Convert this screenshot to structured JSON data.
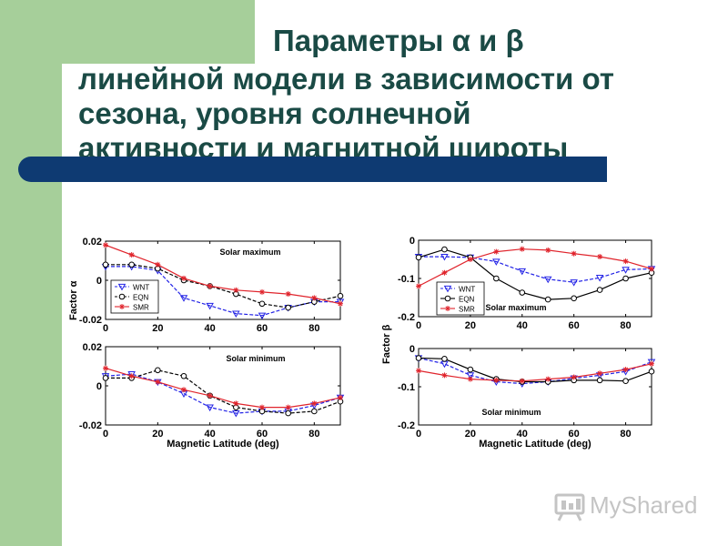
{
  "slide": {
    "title_line1": "Параметры α и β",
    "title_lines": [
      "линейной модели в зависимости от",
      "сезона, уровня солнечной",
      "активности и магнитной широты"
    ],
    "colors": {
      "green": "#a6cf9a",
      "bar": "#0e3a72",
      "title": "#1a4a45"
    }
  },
  "watermark": {
    "text": "MyShared",
    "icon": "presentation-board-icon"
  },
  "chart_data": [
    {
      "type": "line",
      "annotation": "Solar maximum",
      "ylabel": "Factor α",
      "xlabel": "",
      "xlim": [
        0,
        90
      ],
      "ylim": [
        -0.02,
        0.02
      ],
      "xticks": [
        "0",
        "20",
        "40",
        "60",
        "80"
      ],
      "yticks": [
        "0.02",
        "0",
        "-0.02"
      ],
      "legend": "bottom-left",
      "x": [
        0,
        10,
        20,
        30,
        40,
        50,
        60,
        70,
        80,
        90
      ],
      "series": [
        {
          "name": "WNT",
          "color": "#2323e6",
          "dash": true,
          "marker": "triangle-down",
          "values": [
            0.007,
            0.007,
            0.005,
            -0.009,
            -0.013,
            -0.017,
            -0.018,
            -0.014,
            -0.011,
            -0.011
          ]
        },
        {
          "name": "EQN",
          "color": "#000000",
          "dash": true,
          "marker": "circle",
          "values": [
            0.008,
            0.008,
            0.006,
            0.0,
            -0.003,
            -0.007,
            -0.012,
            -0.014,
            -0.011,
            -0.008
          ]
        },
        {
          "name": "SMR",
          "color": "#e0242c",
          "dash": false,
          "marker": "star",
          "values": [
            0.018,
            0.013,
            0.008,
            0.001,
            -0.003,
            -0.005,
            -0.006,
            -0.007,
            -0.009,
            -0.012
          ]
        }
      ]
    },
    {
      "type": "line",
      "annotation": "Solar minimum",
      "ylabel": "",
      "xlabel": "Magnetic Latitude (deg)",
      "xlim": [
        0,
        90
      ],
      "ylim": [
        -0.02,
        0.02
      ],
      "xticks": [
        "0",
        "20",
        "40",
        "60",
        "80"
      ],
      "yticks": [
        "0.02",
        "0",
        "-0.02"
      ],
      "legend": "none",
      "x": [
        0,
        10,
        20,
        30,
        40,
        50,
        60,
        70,
        80,
        90
      ],
      "series": [
        {
          "name": "WNT",
          "color": "#2323e6",
          "dash": true,
          "marker": "triangle-down",
          "values": [
            0.005,
            0.006,
            0.002,
            -0.004,
            -0.011,
            -0.014,
            -0.013,
            -0.013,
            -0.01,
            -0.006
          ]
        },
        {
          "name": "EQN",
          "color": "#000000",
          "dash": true,
          "marker": "circle",
          "values": [
            0.004,
            0.004,
            0.008,
            0.005,
            -0.005,
            -0.011,
            -0.013,
            -0.014,
            -0.013,
            -0.008
          ]
        },
        {
          "name": "SMR",
          "color": "#e0242c",
          "dash": false,
          "marker": "star",
          "values": [
            0.009,
            0.005,
            0.002,
            -0.002,
            -0.005,
            -0.009,
            -0.011,
            -0.011,
            -0.009,
            -0.006
          ]
        }
      ]
    },
    {
      "type": "line",
      "annotation": "Solar maximum",
      "ylabel": "",
      "xlabel": "",
      "xlim": [
        0,
        90
      ],
      "ylim": [
        -0.2,
        0.0
      ],
      "xticks": [
        "0",
        "20",
        "40",
        "60",
        "80"
      ],
      "yticks": [
        "0",
        "-0.1",
        "-0.2"
      ],
      "legend": "bottom-left",
      "x": [
        0,
        10,
        20,
        30,
        40,
        50,
        60,
        70,
        80,
        90
      ],
      "series": [
        {
          "name": "WNT",
          "color": "#2323e6",
          "dash": true,
          "marker": "triangle-down",
          "values": [
            -0.043,
            -0.043,
            -0.045,
            -0.056,
            -0.081,
            -0.102,
            -0.11,
            -0.098,
            -0.077,
            -0.075
          ]
        },
        {
          "name": "EQN",
          "color": "#000000",
          "dash": false,
          "marker": "circle",
          "values": [
            -0.045,
            -0.024,
            -0.045,
            -0.1,
            -0.137,
            -0.155,
            -0.152,
            -0.13,
            -0.1,
            -0.085
          ]
        },
        {
          "name": "SMR",
          "color": "#e0242c",
          "dash": false,
          "marker": "star",
          "values": [
            -0.12,
            -0.085,
            -0.05,
            -0.03,
            -0.023,
            -0.026,
            -0.035,
            -0.043,
            -0.055,
            -0.075
          ]
        }
      ]
    },
    {
      "type": "line",
      "annotation": "Solar minimum",
      "ylabel": "Factor β",
      "xlabel": "Magnetic Latitude (deg)",
      "xlim": [
        0,
        90
      ],
      "ylim": [
        -0.2,
        0.0
      ],
      "xticks": [
        "0",
        "20",
        "40",
        "60",
        "80"
      ],
      "yticks": [
        "0",
        "-0.1",
        "-0.2"
      ],
      "legend": "none",
      "x": [
        0,
        10,
        20,
        30,
        40,
        50,
        60,
        70,
        80,
        90
      ],
      "series": [
        {
          "name": "WNT",
          "color": "#2323e6",
          "dash": true,
          "marker": "triangle-down",
          "values": [
            -0.025,
            -0.04,
            -0.07,
            -0.087,
            -0.092,
            -0.087,
            -0.078,
            -0.07,
            -0.06,
            -0.035
          ]
        },
        {
          "name": "EQN",
          "color": "#000000",
          "dash": false,
          "marker": "circle",
          "values": [
            -0.025,
            -0.027,
            -0.055,
            -0.08,
            -0.087,
            -0.087,
            -0.083,
            -0.083,
            -0.085,
            -0.06
          ]
        },
        {
          "name": "SMR",
          "color": "#e0242c",
          "dash": false,
          "marker": "star",
          "values": [
            -0.058,
            -0.07,
            -0.08,
            -0.083,
            -0.085,
            -0.08,
            -0.075,
            -0.065,
            -0.055,
            -0.04
          ]
        }
      ]
    }
  ]
}
